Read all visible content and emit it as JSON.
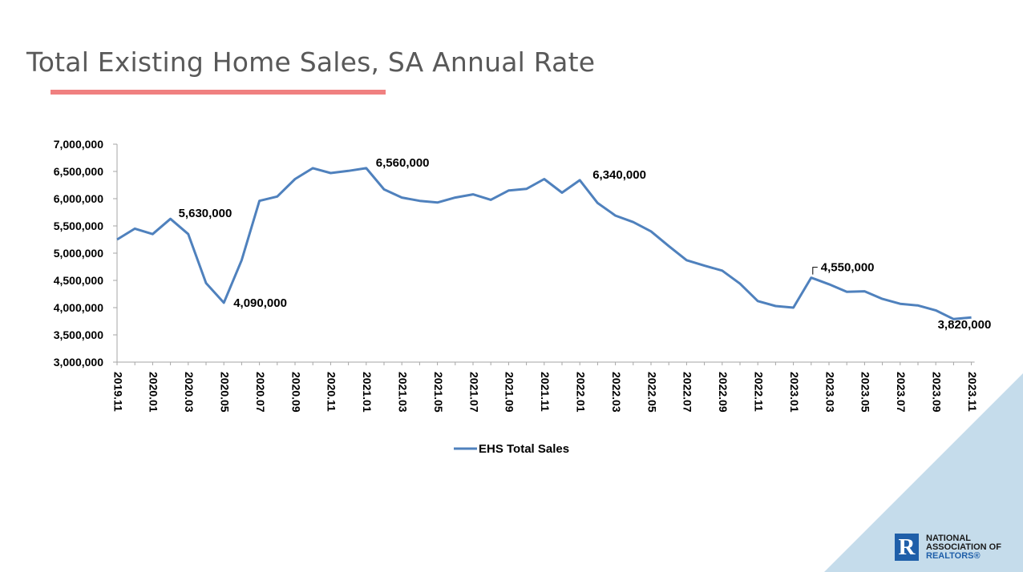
{
  "slide": {
    "title": "Total Existing Home Sales, SA Annual Rate",
    "accent_color": "#f08080"
  },
  "chart_data": {
    "type": "line",
    "title": "Total Existing Home Sales, SA Annual Rate",
    "xlabel": "",
    "ylabel": "",
    "ylim": [
      3000000,
      7000000
    ],
    "y_ticks": [
      3000000,
      3500000,
      4000000,
      4500000,
      5000000,
      5500000,
      6000000,
      6500000,
      7000000
    ],
    "y_tick_labels": [
      "3,000,000",
      "3,500,000",
      "4,000,000",
      "4,500,000",
      "5,000,000",
      "5,500,000",
      "6,000,000",
      "6,500,000",
      "7,000,000"
    ],
    "x_tick_labels": [
      "2019.11",
      "2020.01",
      "2020.03",
      "2020.05",
      "2020.07",
      "2020.09",
      "2020.11",
      "2021.01",
      "2021.03",
      "2021.05",
      "2021.07",
      "2021.09",
      "2021.11",
      "2022.01",
      "2022.03",
      "2022.05",
      "2022.07",
      "2022.09",
      "2022.11",
      "2023.01",
      "2023.03",
      "2023.05",
      "2023.07",
      "2023.09",
      "2023.11"
    ],
    "grid": false,
    "legend_position": "bottom-center",
    "series": [
      {
        "name": "EHS Total Sales",
        "color": "#4f81bd",
        "x": [
          "2019.11",
          "2019.12",
          "2020.01",
          "2020.02",
          "2020.03",
          "2020.04",
          "2020.05",
          "2020.06",
          "2020.07",
          "2020.08",
          "2020.09",
          "2020.10",
          "2020.11",
          "2020.12",
          "2021.01",
          "2021.02",
          "2021.03",
          "2021.04",
          "2021.05",
          "2021.06",
          "2021.07",
          "2021.08",
          "2021.09",
          "2021.10",
          "2021.11",
          "2021.12",
          "2022.01",
          "2022.02",
          "2022.03",
          "2022.04",
          "2022.05",
          "2022.06",
          "2022.07",
          "2022.08",
          "2022.09",
          "2022.10",
          "2022.11",
          "2022.12",
          "2023.01",
          "2023.02",
          "2023.03",
          "2023.04",
          "2023.05",
          "2023.06",
          "2023.07",
          "2023.08",
          "2023.09",
          "2023.10",
          "2023.11"
        ],
        "values": [
          5250000,
          5450000,
          5350000,
          5630000,
          5350000,
          4450000,
          4090000,
          4870000,
          5960000,
          6040000,
          6360000,
          6560000,
          6470000,
          6510000,
          6560000,
          6170000,
          6020000,
          5960000,
          5930000,
          6020000,
          6080000,
          5980000,
          6150000,
          6180000,
          6360000,
          6110000,
          6340000,
          5920000,
          5690000,
          5570000,
          5400000,
          5130000,
          4870000,
          4770000,
          4680000,
          4440000,
          4120000,
          4030000,
          4000000,
          4550000,
          4430000,
          4290000,
          4300000,
          4160000,
          4070000,
          4040000,
          3950000,
          3790000,
          3820000
        ]
      }
    ],
    "annotations": [
      {
        "index": 3,
        "text": "5,630,000"
      },
      {
        "index": 6,
        "text": "4,090,000"
      },
      {
        "index": 14,
        "text": "6,560,000"
      },
      {
        "index": 26,
        "text": "6,340,000"
      },
      {
        "index": 39,
        "text": "4,550,000"
      },
      {
        "index": 48,
        "text": "3,820,000"
      }
    ]
  },
  "logo": {
    "line1": "NATIONAL",
    "line2": "ASSOCIATION OF",
    "line3": "REALTORS®",
    "letter": "R",
    "color": "#1f5fa9"
  }
}
